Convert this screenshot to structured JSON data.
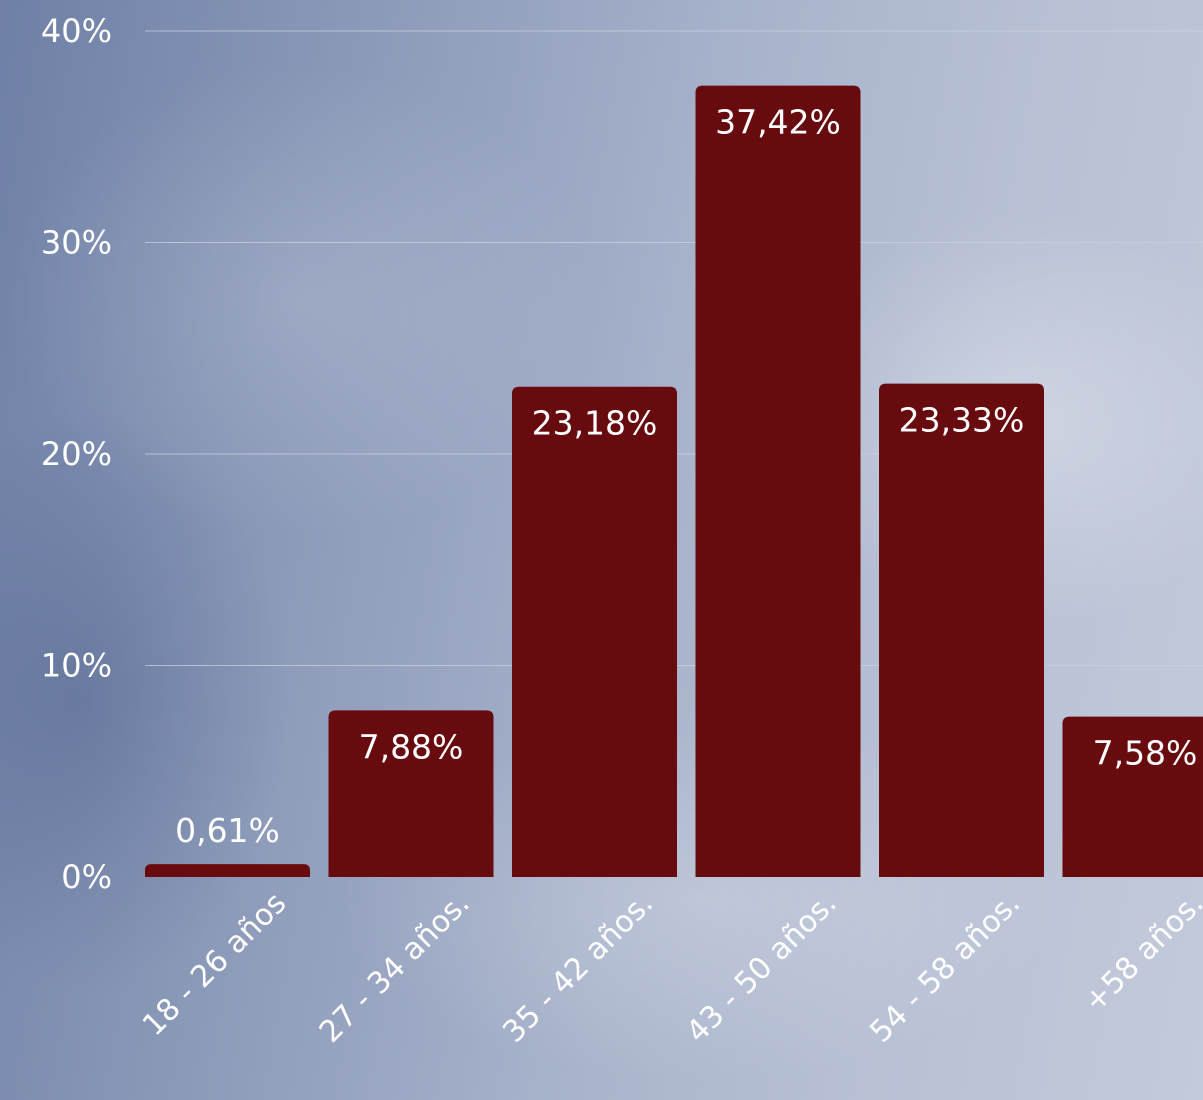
{
  "chart_data": {
    "type": "bar",
    "categories": [
      "18 - 26 años",
      "27 - 34 años.",
      "35 - 42 años.",
      "43 - 50 años.",
      "54 - 58 años.",
      "+58 años."
    ],
    "values": [
      0.61,
      7.88,
      23.18,
      37.42,
      23.33,
      7.58
    ],
    "data_labels": [
      "0,61%",
      "7,88%",
      "23,18%",
      "37,42%",
      "23,33%",
      "7,58%"
    ],
    "y_ticks": [
      0,
      10,
      20,
      30,
      40
    ],
    "y_tick_labels": [
      "0%",
      "10%",
      "20%",
      "30%",
      "40%"
    ],
    "ylim": [
      0,
      40
    ],
    "grid": true,
    "legend": "none",
    "colors": {
      "bar": "#680b0f",
      "text": "#ffffff",
      "gridline": "#c9d0e0"
    }
  }
}
